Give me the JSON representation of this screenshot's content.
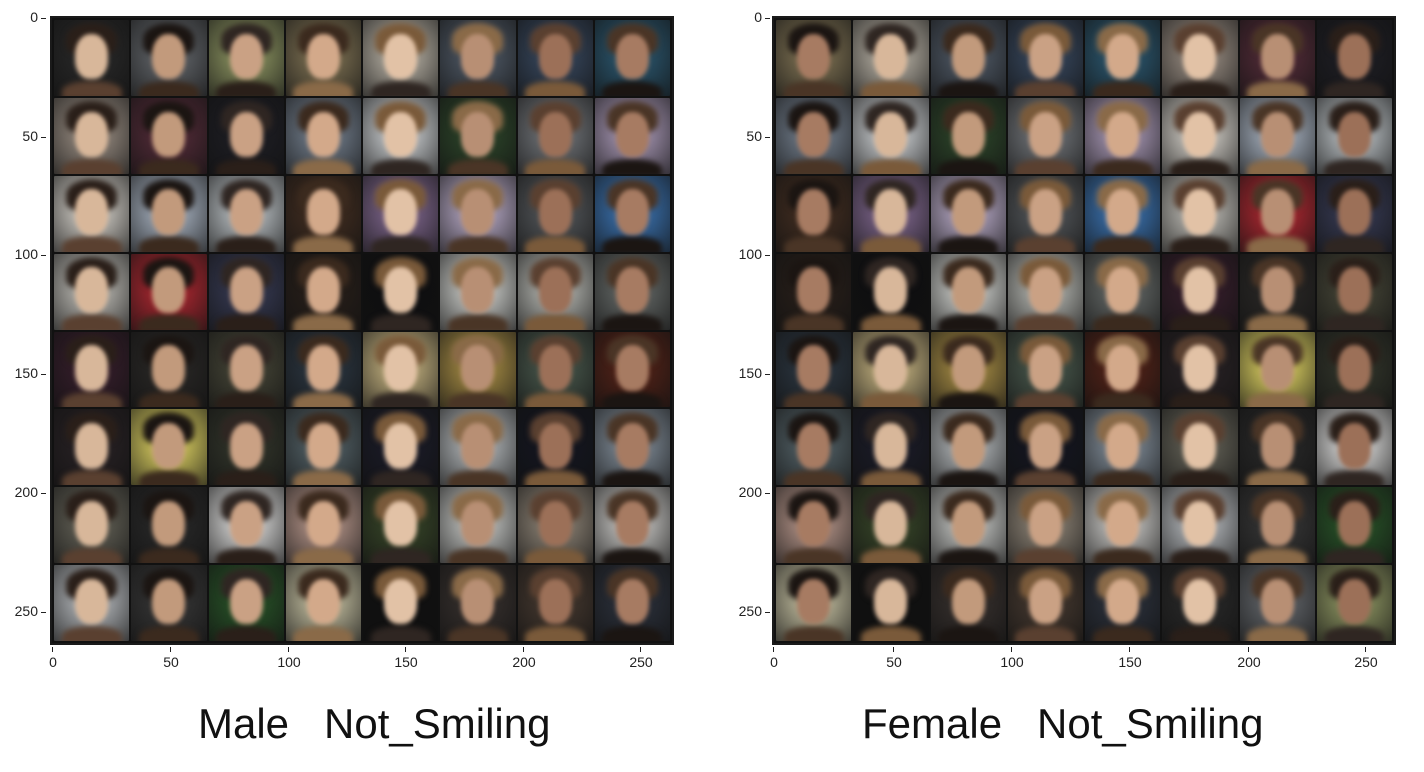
{
  "panels": [
    {
      "caption": "Male   Not_Smiling",
      "y_ticks": [
        "0",
        "50",
        "100",
        "150",
        "200",
        "250"
      ],
      "x_ticks": [
        "0",
        "50",
        "100",
        "150",
        "200",
        "250"
      ],
      "image_grid": {
        "rows": 8,
        "cols": 8,
        "content": "generated face samples"
      }
    },
    {
      "caption": "Female   Not_Smiling",
      "y_ticks": [
        "0",
        "50",
        "100",
        "150",
        "200",
        "250"
      ],
      "x_ticks": [
        "0",
        "50",
        "100",
        "150",
        "200",
        "250"
      ],
      "image_grid": {
        "rows": 8,
        "cols": 8,
        "content": "generated face samples"
      }
    }
  ]
}
